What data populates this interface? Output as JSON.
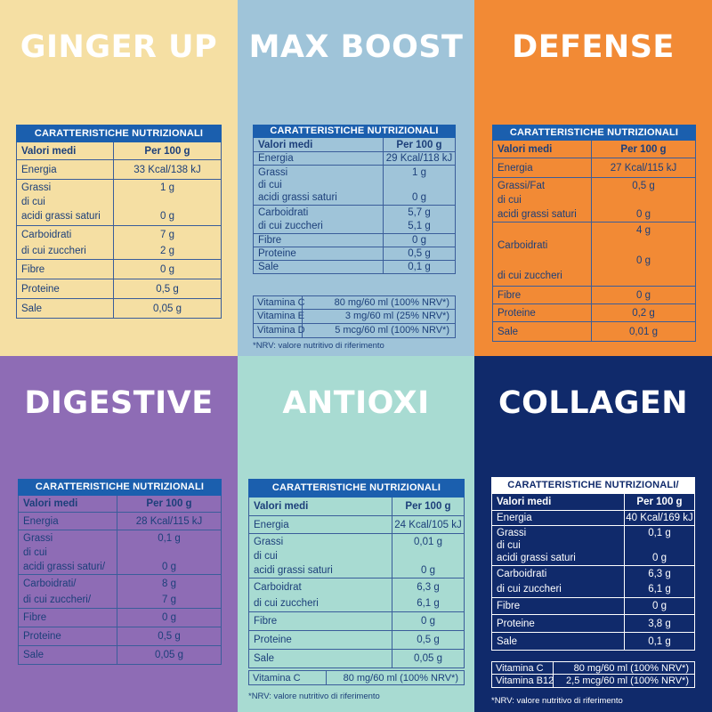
{
  "panels": [
    {
      "title": "GINGER UP",
      "bg": "#f5dfa3",
      "text_color": "#1c3f7a",
      "border_color": "#3a5d9a",
      "table": {
        "heading": "CARATTERISTICHE NUTRIZIONALI",
        "col_label": "Valori medi",
        "col_value": "Per 100 g",
        "rows": [
          {
            "label": [
              "Energia"
            ],
            "value": [
              "33 Kcal/138 kJ"
            ]
          },
          {
            "label": [
              "Grassi",
              "di cui",
              "acidi grassi saturi"
            ],
            "value": [
              "1 g",
              "",
              "0 g"
            ]
          },
          {
            "label": [
              "Carboidrati",
              "di cui zuccheri"
            ],
            "value": [
              "7 g",
              "2 g"
            ]
          },
          {
            "label": [
              "Fibre"
            ],
            "value": [
              "0 g"
            ]
          },
          {
            "label": [
              "Proteine"
            ],
            "value": [
              "0,5 g"
            ]
          },
          {
            "label": [
              "Sale"
            ],
            "value": [
              "0,05 g"
            ]
          }
        ]
      }
    },
    {
      "title": "MAX BOOST",
      "bg": "#9fc4d9",
      "text_color": "#1c3f7a",
      "border_color": "#3a5d9a",
      "table": {
        "heading": "CARATTERISTICHE NUTRIZIONALI",
        "col_label": "Valori medi",
        "col_value": "Per 100 g",
        "rows": [
          {
            "label": [
              "Energia"
            ],
            "value": [
              "29 Kcal/118 kJ"
            ]
          },
          {
            "label": [
              "Grassi",
              "di cui",
              "acidi grassi saturi"
            ],
            "value": [
              "1 g",
              "",
              "0 g"
            ]
          },
          {
            "label": [
              "Carboidrati",
              "di cui zuccheri"
            ],
            "value": [
              "5,7 g",
              "5,1 g"
            ]
          },
          {
            "label": [
              "Fibre"
            ],
            "value": [
              "0 g"
            ]
          },
          {
            "label": [
              "Proteine"
            ],
            "value": [
              "0,5 g"
            ]
          },
          {
            "label": [
              "Sale"
            ],
            "value": [
              "0,1 g"
            ]
          }
        ]
      },
      "vitamins": [
        {
          "name": "Vitamina C",
          "value": "80 mg/60 ml (100% NRV*)"
        },
        {
          "name": "Vitamina E",
          "value": "3 mg/60 ml (25% NRV*)"
        },
        {
          "name": "Vitamina D",
          "value": "5 mcg/60 ml (100% NRV*)"
        }
      ],
      "note": "*NRV: valore nutritivo di riferimento"
    },
    {
      "title": "DEFENSE",
      "bg": "#f28a35",
      "text_color": "#1c3f7a",
      "border_color": "#3a5d9a",
      "table": {
        "heading": "CARATTERISTICHE NUTRIZIONALI",
        "col_label": "Valori medi",
        "col_value": "Per 100 g",
        "rows": [
          {
            "label": [
              "Energia"
            ],
            "value": [
              "27 Kcal/115 kJ"
            ]
          },
          {
            "label": [
              "Grassi/Fat",
              "di cui",
              "acidi grassi saturi"
            ],
            "value": [
              "0,5 g",
              "",
              "0 g"
            ]
          },
          {
            "label": [
              "",
              "Carboidrati",
              "",
              "di cui zuccheri"
            ],
            "value": [
              "4 g",
              "",
              "0 g",
              ""
            ]
          },
          {
            "label": [
              "Fibre"
            ],
            "value": [
              "0 g"
            ]
          },
          {
            "label": [
              "Proteine"
            ],
            "value": [
              "0,2 g"
            ]
          },
          {
            "label": [
              "Sale"
            ],
            "value": [
              "0,01 g"
            ]
          }
        ]
      }
    },
    {
      "title": "DIGESTIVE",
      "bg": "#8e6cb5",
      "text_color": "#1c3f7a",
      "border_color": "#3a5d9a",
      "table": {
        "heading": "CARATTERISTICHE NUTRIZIONALI",
        "col_label": "Valori medi",
        "col_value": "Per 100 g",
        "rows": [
          {
            "label": [
              "Energia"
            ],
            "value": [
              "28 Kcal/115 kJ"
            ]
          },
          {
            "label": [
              "Grassi",
              "di cui",
              "acidi grassi saturi/"
            ],
            "value": [
              "0,1 g",
              "",
              "0 g"
            ]
          },
          {
            "label": [
              "Carboidrati/",
              "di cui zuccheri/"
            ],
            "value": [
              "8 g",
              "7 g"
            ]
          },
          {
            "label": [
              "Fibre"
            ],
            "value": [
              "0 g"
            ]
          },
          {
            "label": [
              "Proteine"
            ],
            "value": [
              "0,5 g"
            ]
          },
          {
            "label": [
              "Sale"
            ],
            "value": [
              "0,05 g"
            ]
          }
        ]
      }
    },
    {
      "title": "ANTIOXI",
      "bg": "#a8dbd2",
      "text_color": "#1c3f7a",
      "border_color": "#3a5d9a",
      "table": {
        "heading": "CARATTERISTICHE NUTRIZIONALI",
        "col_label": "Valori medi",
        "col_value": "Per 100 g",
        "rows": [
          {
            "label": [
              "Energia"
            ],
            "value": [
              "24 Kcal/105 kJ"
            ]
          },
          {
            "label": [
              "Grassi",
              "di cui",
              "acidi grassi saturi"
            ],
            "value": [
              "0,01 g",
              "",
              "0 g"
            ]
          },
          {
            "label": [
              "Carboidrat",
              "di cui zuccheri"
            ],
            "value": [
              "6,3 g",
              "6,1 g"
            ]
          },
          {
            "label": [
              "Fibre"
            ],
            "value": [
              "0 g"
            ]
          },
          {
            "label": [
              "Proteine"
            ],
            "value": [
              "0,5 g"
            ]
          },
          {
            "label": [
              "Sale"
            ],
            "value": [
              "0,05 g"
            ]
          }
        ]
      },
      "vitamins": [
        {
          "name": "Vitamina C",
          "value": "80 mg/60 ml (100% NRV*)"
        }
      ],
      "note": "*NRV: valore nutritivo di riferimento"
    },
    {
      "title": "COLLAGEN",
      "bg": "#102a6b",
      "text_color": "#ffffff",
      "border_color": "#ffffff",
      "table": {
        "heading": "CARATTERISTICHE NUTRIZIONALI/",
        "col_label": "Valori medi",
        "col_value": "Per 100 g",
        "rows": [
          {
            "label": [
              "Energia"
            ],
            "value": [
              "40 Kcal/169 kJ"
            ]
          },
          {
            "label": [
              "Grassi",
              "di cui",
              "acidi grassi saturi"
            ],
            "value": [
              "0,1 g",
              "",
              "0 g"
            ]
          },
          {
            "label": [
              "Carboidrati",
              "di cui zuccheri"
            ],
            "value": [
              "6,3 g",
              "6,1 g"
            ]
          },
          {
            "label": [
              "Fibre"
            ],
            "value": [
              "0 g"
            ]
          },
          {
            "label": [
              "Proteine"
            ],
            "value": [
              "3,8 g"
            ]
          },
          {
            "label": [
              "Sale"
            ],
            "value": [
              "0,1 g"
            ]
          }
        ]
      },
      "vitamins": [
        {
          "name": "Vitamina C",
          "value": "80 mg/60 ml (100% NRV*)"
        },
        {
          "name": "Vitamina B12",
          "value": "2,5 mcg/60 ml (100% NRV*)"
        }
      ],
      "note": "*NRV: valore nutritivo di riferimento"
    }
  ]
}
